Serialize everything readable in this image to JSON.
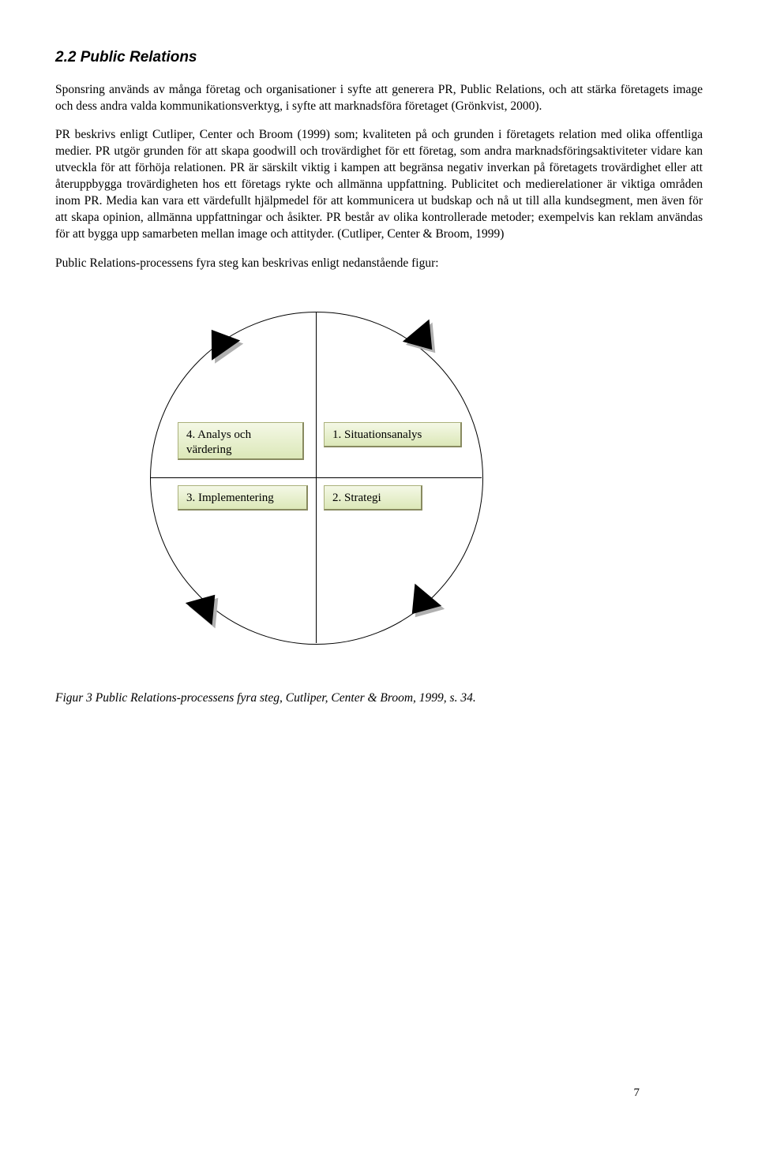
{
  "heading": "2.2 Public Relations",
  "para1": "Sponsring används av många företag och organisationer i syfte att generera PR, Public Relations, och att stärka företagets image och dess andra valda kommunikationsverktyg, i syfte att marknadsföra företaget (Grönkvist, 2000).",
  "para2": "PR beskrivs enligt Cutliper, Center och Broom (1999) som; kvaliteten på och grunden i företagets relation med olika offentliga medier. PR utgör grunden för att skapa goodwill och trovärdighet för ett företag, som andra marknadsföringsaktiviteter vidare kan utveckla för att förhöja relationen. PR är särskilt viktig i kampen att begränsa negativ inverkan på företagets trovärdighet eller att återuppbygga trovärdigheten hos ett företags rykte och allmänna uppfattning. Publicitet och medierelationer är viktiga områden inom PR. Media kan vara ett värdefullt hjälpmedel för att kommunicera ut budskap och nå ut till alla kundsegment, men även för att skapa opinion, allmänna uppfattningar och åsikter. PR består av olika kontrollerade metoder; exempelvis kan reklam användas för att bygga upp samarbeten mellan image och attityder. (Cutliper, Center & Broom, 1999)",
  "para3": "Public Relations-processens fyra steg kan beskrivas enligt nedanstående figur:",
  "diagram": {
    "type": "flowchart",
    "circle_border": "#000000",
    "box_gradient_top": "#f4f8e6",
    "box_gradient_bottom": "#dce8b8",
    "box_border": "#aab07a",
    "triangle_fill": "#000000",
    "triangle_shadow": "#b0b0b0",
    "boxes": {
      "tl": "4. Analys och värdering",
      "tr": "1. Situationsanalys",
      "bl": "3. Implementering",
      "br": "2. Strategi"
    }
  },
  "caption": "Figur 3 Public Relations-processens fyra steg, Cutliper, Center & Broom, 1999, s. 34.",
  "pagenum": "7"
}
